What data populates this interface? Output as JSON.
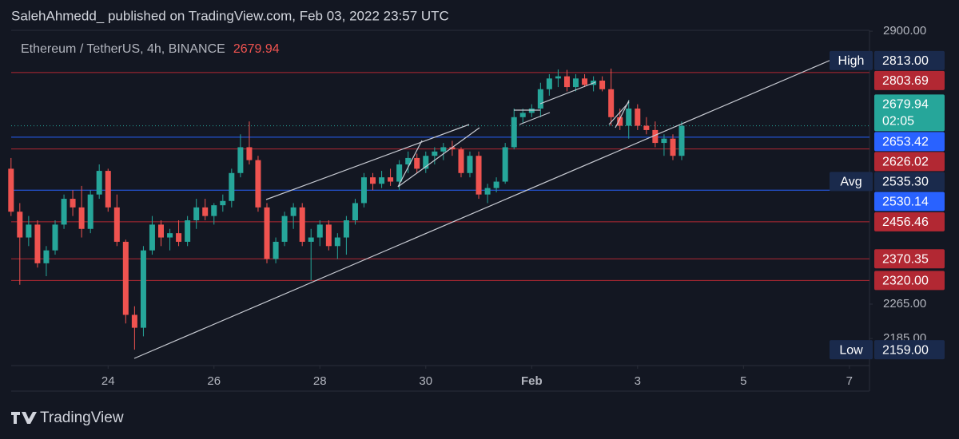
{
  "header": "SalehAhmedd_ published on TradingView.com, Feb 03, 2022 23:57 UTC",
  "footer": "TradingView",
  "chart_data": {
    "type": "candlestick",
    "title": "Ethereum / TetherUS, 4h, BINANCE",
    "last_price": 2679.94,
    "countdown": "02:05",
    "up_color": "#26a69a",
    "down_color": "#ef5350",
    "x": [
      22.167,
      22.333,
      22.5,
      22.667,
      22.833,
      23,
      23.167,
      23.333,
      23.5,
      23.667,
      23.833,
      24,
      24.167,
      24.333,
      24.5,
      24.667,
      24.833,
      25,
      25.167,
      25.333,
      25.5,
      25.667,
      25.833,
      26,
      26.167,
      26.333,
      26.5,
      26.667,
      26.833,
      27,
      27.167,
      27.333,
      27.5,
      27.667,
      27.833,
      28,
      28.167,
      28.333,
      28.5,
      28.667,
      28.833,
      29,
      29.167,
      29.333,
      29.5,
      29.667,
      29.833,
      30,
      30.167,
      30.333,
      30.5,
      30.667,
      30.833,
      31,
      31.167,
      31.333,
      31.5,
      31.667,
      31.833,
      32,
      32.167,
      32.333,
      32.5,
      32.667,
      32.833,
      33,
      33.167,
      33.333,
      33.5,
      33.667,
      33.833,
      34,
      34.167,
      34.333,
      34.5,
      34.667,
      34.833
    ],
    "open": [
      2580,
      2480,
      2420,
      2450,
      2360,
      2390,
      2450,
      2510,
      2490,
      2440,
      2520,
      2575,
      2490,
      2410,
      2240,
      2210,
      2390,
      2450,
      2420,
      2430,
      2410,
      2460,
      2490,
      2470,
      2495,
      2505,
      2570,
      2630,
      2600,
      2490,
      2370,
      2410,
      2470,
      2490,
      2410,
      2420,
      2450,
      2400,
      2420,
      2460,
      2500,
      2560,
      2545,
      2560,
      2550,
      2590,
      2605,
      2580,
      2610,
      2620,
      2630,
      2625,
      2570,
      2610,
      2520,
      2535,
      2550,
      2630,
      2700,
      2710,
      2720,
      2765,
      2790,
      2795,
      2770,
      2790,
      2775,
      2785,
      2765,
      2700,
      2680,
      2720,
      2680,
      2670,
      2640,
      2650,
      2610
    ],
    "high": [
      2605,
      2500,
      2470,
      2460,
      2400,
      2460,
      2520,
      2530,
      2540,
      2530,
      2590,
      2580,
      2520,
      2415,
      2260,
      2400,
      2470,
      2460,
      2440,
      2460,
      2470,
      2510,
      2510,
      2500,
      2520,
      2580,
      2660,
      2690,
      2610,
      2500,
      2420,
      2480,
      2500,
      2500,
      2440,
      2460,
      2460,
      2430,
      2470,
      2510,
      2570,
      2570,
      2575,
      2580,
      2600,
      2620,
      2615,
      2620,
      2630,
      2640,
      2645,
      2630,
      2620,
      2620,
      2545,
      2560,
      2640,
      2720,
      2720,
      2730,
      2780,
      2800,
      2811,
      2810,
      2800,
      2800,
      2795,
      2795,
      2813,
      2720,
      2740,
      2730,
      2700,
      2690,
      2660,
      2660,
      2690
    ],
    "low": [
      2470,
      2310,
      2400,
      2350,
      2330,
      2380,
      2440,
      2470,
      2420,
      2430,
      2510,
      2480,
      2400,
      2220,
      2159,
      2190,
      2380,
      2400,
      2390,
      2400,
      2400,
      2440,
      2460,
      2450,
      2480,
      2490,
      2560,
      2590,
      2480,
      2360,
      2360,
      2400,
      2440,
      2400,
      2320,
      2400,
      2390,
      2370,
      2380,
      2450,
      2490,
      2530,
      2535,
      2540,
      2530,
      2570,
      2570,
      2570,
      2590,
      2600,
      2610,
      2560,
      2560,
      2510,
      2500,
      2525,
      2545,
      2625,
      2685,
      2700,
      2700,
      2750,
      2770,
      2760,
      2760,
      2770,
      2760,
      2760,
      2680,
      2670,
      2650,
      2670,
      2660,
      2630,
      2610,
      2600,
      2600
    ],
    "close": [
      2480,
      2420,
      2450,
      2360,
      2390,
      2450,
      2510,
      2490,
      2440,
      2520,
      2575,
      2490,
      2410,
      2240,
      2210,
      2390,
      2450,
      2420,
      2430,
      2410,
      2460,
      2490,
      2470,
      2495,
      2505,
      2570,
      2630,
      2600,
      2490,
      2370,
      2410,
      2470,
      2490,
      2410,
      2420,
      2450,
      2400,
      2420,
      2460,
      2500,
      2560,
      2545,
      2560,
      2550,
      2590,
      2605,
      2580,
      2610,
      2620,
      2630,
      2625,
      2570,
      2610,
      2520,
      2535,
      2550,
      2630,
      2700,
      2710,
      2720,
      2765,
      2790,
      2795,
      2770,
      2790,
      2775,
      2785,
      2765,
      2700,
      2680,
      2720,
      2680,
      2670,
      2640,
      2650,
      2610,
      2679.94
    ],
    "xlim": [
      22.17,
      38.38
    ],
    "xticks": [
      24,
      26,
      28,
      30,
      {
        "value": 32,
        "label": "Feb"
      },
      {
        "value": 34,
        "label": "3"
      },
      {
        "value": 36,
        "label": "5"
      },
      {
        "value": 38,
        "label": "7"
      }
    ],
    "ylim": [
      2122,
      2902
    ],
    "yticks": [
      {
        "value": 2900,
        "label": "2900.00"
      },
      {
        "value": 2265,
        "label": "2265.00"
      },
      {
        "value": 2185,
        "label": "2185.00"
      }
    ],
    "levels": [
      {
        "value": 2803.69,
        "label": "2803.69",
        "color": "#b22833"
      },
      {
        "value": 2653.42,
        "label": "2653.42",
        "color": "#2962ff"
      },
      {
        "value": 2626.02,
        "label": "2626.02",
        "color": "#b22833"
      },
      {
        "value": 2530.14,
        "label": "2530.14",
        "color": "#2962ff"
      },
      {
        "value": 2456.46,
        "label": "2456.46",
        "color": "#b22833"
      },
      {
        "value": 2370.35,
        "label": "2370.35",
        "color": "#b22833"
      },
      {
        "value": 2320,
        "label": "2320.00",
        "color": "#b22833"
      }
    ],
    "markers": [
      {
        "name": "High",
        "value": 2813,
        "label": "2813.00"
      },
      {
        "name": "Avg",
        "value": 2535.3,
        "label": "2535.30"
      },
      {
        "name": "Low",
        "value": 2159,
        "label": "2159.00"
      }
    ]
  }
}
